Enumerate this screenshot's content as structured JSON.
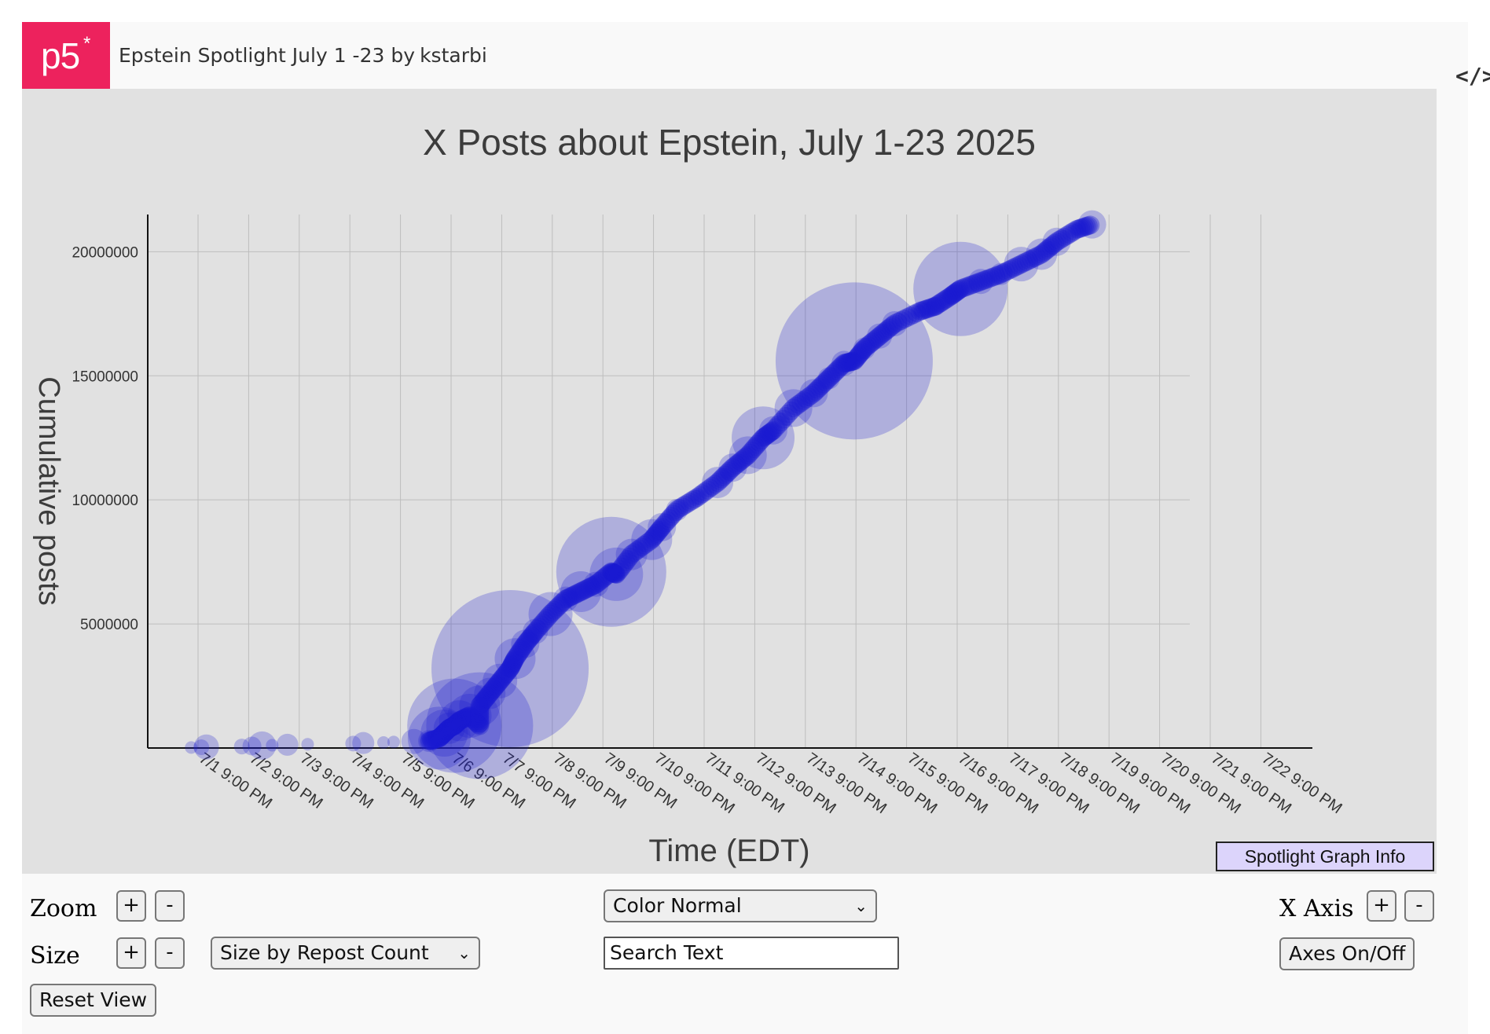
{
  "app": {
    "logo_text": "p5",
    "logo_star": "*",
    "sketch_title": "Epstein Spotlight July 1 -23",
    "by_label": "by",
    "author": "kstarbi",
    "code_icon": "</>"
  },
  "chart_data": {
    "type": "scatter",
    "title": "X Posts about Epstein, July 1-23 2025",
    "xlabel": "Time (EDT)",
    "ylabel": "Cumulative posts",
    "ylim": [
      0,
      21500000
    ],
    "yticks": [
      5000000,
      10000000,
      15000000,
      20000000
    ],
    "ytick_labels": [
      "5000000",
      "10000000",
      "15000000",
      "20000000"
    ],
    "xticks": [
      "7/1 9:00 PM",
      "7/2 9:00 PM",
      "7/3 9:00 PM",
      "7/4 9:00 PM",
      "7/5 9:00 PM",
      "7/6 9:00 PM",
      "7/7 9:00 PM",
      "7/8 9:00 PM",
      "7/9 9:00 PM",
      "7/10 9:00 PM",
      "7/11 9:00 PM",
      "7/12 9:00 PM",
      "7/13 9:00 PM",
      "7/14 9:00 PM",
      "7/15 9:00 PM",
      "7/16 9:00 PM",
      "7/17 9:00 PM",
      "7/18 9:00 PM",
      "7/19 9:00 PM",
      "7/20 9:00 PM",
      "7/21 9:00 PM",
      "7/22 9:00 PM"
    ],
    "grid": true,
    "marker_color": "#1a1ad0",
    "marker_opacity": 0.25,
    "size_encoding": "Repost Count",
    "points": [
      {
        "x": 0.3,
        "y": 20000,
        "s": 8
      },
      {
        "x": 0.5,
        "y": 30000,
        "s": 10
      },
      {
        "x": 0.6,
        "y": 40000,
        "s": 16
      },
      {
        "x": 1.3,
        "y": 60000,
        "s": 10
      },
      {
        "x": 1.5,
        "y": 80000,
        "s": 12
      },
      {
        "x": 1.7,
        "y": 100000,
        "s": 18
      },
      {
        "x": 1.9,
        "y": 110000,
        "s": 8
      },
      {
        "x": 2.2,
        "y": 130000,
        "s": 14
      },
      {
        "x": 2.6,
        "y": 150000,
        "s": 8
      },
      {
        "x": 3.5,
        "y": 180000,
        "s": 10
      },
      {
        "x": 3.7,
        "y": 200000,
        "s": 14
      },
      {
        "x": 4.1,
        "y": 220000,
        "s": 8
      },
      {
        "x": 4.3,
        "y": 240000,
        "s": 8
      },
      {
        "x": 4.7,
        "y": 260000,
        "s": 16
      },
      {
        "x": 5.0,
        "y": 280000,
        "s": 14
      },
      {
        "x": 5.2,
        "y": 400000,
        "s": 40
      },
      {
        "x": 5.3,
        "y": 600000,
        "s": 30
      },
      {
        "x": 5.4,
        "y": 800000,
        "s": 20
      },
      {
        "x": 5.5,
        "y": 900000,
        "s": 60
      },
      {
        "x": 5.6,
        "y": 1100000,
        "s": 26
      },
      {
        "x": 5.8,
        "y": 1300000,
        "s": 28
      },
      {
        "x": 6.0,
        "y": 900000,
        "s": 68
      },
      {
        "x": 6.0,
        "y": 1700000,
        "s": 26
      },
      {
        "x": 6.2,
        "y": 2200000,
        "s": 20
      },
      {
        "x": 6.4,
        "y": 2700000,
        "s": 22
      },
      {
        "x": 6.6,
        "y": 3200000,
        "s": 100
      },
      {
        "x": 6.7,
        "y": 3600000,
        "s": 26
      },
      {
        "x": 6.9,
        "y": 4200000,
        "s": 18
      },
      {
        "x": 7.1,
        "y": 4700000,
        "s": 16
      },
      {
        "x": 7.4,
        "y": 5400000,
        "s": 28
      },
      {
        "x": 7.7,
        "y": 6000000,
        "s": 16
      },
      {
        "x": 8.0,
        "y": 6300000,
        "s": 26
      },
      {
        "x": 8.3,
        "y": 6600000,
        "s": 16
      },
      {
        "x": 8.6,
        "y": 7100000,
        "s": 70
      },
      {
        "x": 8.7,
        "y": 7000000,
        "s": 34
      },
      {
        "x": 9.0,
        "y": 7800000,
        "s": 20
      },
      {
        "x": 9.4,
        "y": 8400000,
        "s": 26
      },
      {
        "x": 9.6,
        "y": 8900000,
        "s": 18
      },
      {
        "x": 9.9,
        "y": 9600000,
        "s": 14
      },
      {
        "x": 10.3,
        "y": 10100000,
        "s": 10
      },
      {
        "x": 10.7,
        "y": 10700000,
        "s": 20
      },
      {
        "x": 11.0,
        "y": 11300000,
        "s": 18
      },
      {
        "x": 11.3,
        "y": 11800000,
        "s": 24
      },
      {
        "x": 11.6,
        "y": 12500000,
        "s": 40
      },
      {
        "x": 11.8,
        "y": 12800000,
        "s": 18
      },
      {
        "x": 12.2,
        "y": 13700000,
        "s": 24
      },
      {
        "x": 12.6,
        "y": 14300000,
        "s": 18
      },
      {
        "x": 12.9,
        "y": 14900000,
        "s": 14
      },
      {
        "x": 13.2,
        "y": 15500000,
        "s": 16
      },
      {
        "x": 13.4,
        "y": 15600000,
        "s": 100
      },
      {
        "x": 13.6,
        "y": 16100000,
        "s": 14
      },
      {
        "x": 13.9,
        "y": 16600000,
        "s": 16
      },
      {
        "x": 14.2,
        "y": 17100000,
        "s": 16
      },
      {
        "x": 14.7,
        "y": 17600000,
        "s": 8
      },
      {
        "x": 15.0,
        "y": 17800000,
        "s": 12
      },
      {
        "x": 15.3,
        "y": 18200000,
        "s": 10
      },
      {
        "x": 15.5,
        "y": 18500000,
        "s": 60
      },
      {
        "x": 15.9,
        "y": 18800000,
        "s": 16
      },
      {
        "x": 16.3,
        "y": 19100000,
        "s": 14
      },
      {
        "x": 16.7,
        "y": 19500000,
        "s": 22
      },
      {
        "x": 17.1,
        "y": 19900000,
        "s": 20
      },
      {
        "x": 17.4,
        "y": 20400000,
        "s": 18
      },
      {
        "x": 17.8,
        "y": 20900000,
        "s": 8
      },
      {
        "x": 18.1,
        "y": 21100000,
        "s": 18
      }
    ]
  },
  "buttons": {
    "spotlight_info": "Spotlight Graph Info",
    "zoom_label": "Zoom",
    "size_label": "Size",
    "xaxis_label": "X Axis",
    "plus": "+",
    "minus": "-",
    "reset_view": "Reset View",
    "axes_toggle": "Axes On/Off"
  },
  "selects": {
    "size_mode": "Size by Repost Count",
    "color_mode": "Color Normal"
  },
  "search": {
    "value": "Search Text"
  }
}
